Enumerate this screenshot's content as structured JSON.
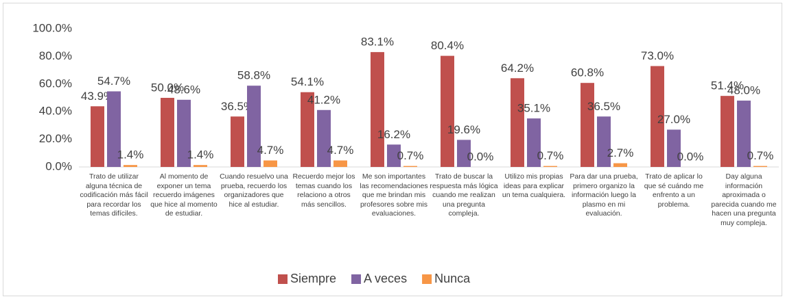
{
  "chart_data": {
    "type": "bar",
    "categories": [
      "Trato de utilizar alguna técnica de codificación más fácil para recordar los temas difíciles.",
      "Al momento de exponer un tema recuerdo imágenes que hice al momento de estudiar.",
      "Cuando resuelvo una prueba, recuerdo los organizadores que hice al estudiar.",
      "Recuerdo mejor los temas cuando los relaciono a otros más sencillos.",
      "Me son importantes las recomendaciones que me brindan mis profesores sobre mis evaluaciones.",
      "Trato de buscar la respuesta más lógica cuando me realizan una pregunta compleja.",
      "Utilizo mis propias ideas para explicar un tema cualquiera.",
      "Para dar una prueba, primero organizo la información luego la plasmo en mi evaluación.",
      "Trato de aplicar lo que sé cuándo me enfrento a un problema.",
      "Day alguna información aproximada o parecida cuando me hacen una pregunta muy compleja."
    ],
    "series": [
      {
        "name": "Siempre",
        "color": "#c0504d",
        "values": [
          43.9,
          50.0,
          36.5,
          54.1,
          83.1,
          80.4,
          64.2,
          60.8,
          73.0,
          51.4
        ],
        "value_labels": [
          "43.9%",
          "50.0%",
          "36.5%",
          "54.1%",
          "83.1%",
          "80.4%",
          "64.2%",
          "60.8%",
          "73.0%",
          "51.4%"
        ]
      },
      {
        "name": "A veces",
        "color": "#8064a2",
        "values": [
          54.7,
          48.6,
          58.8,
          41.2,
          16.2,
          19.6,
          35.1,
          36.5,
          27.0,
          48.0
        ],
        "value_labels": [
          "54.7%",
          "48.6%",
          "58.8%",
          "41.2%",
          "16.2%",
          "19.6%",
          "35.1%",
          "36.5%",
          "27.0%",
          "48.0%"
        ]
      },
      {
        "name": "Nunca",
        "color": "#f79646",
        "values": [
          1.4,
          1.4,
          4.7,
          4.7,
          0.7,
          0.0,
          0.7,
          2.7,
          0.0,
          0.7
        ],
        "value_labels": [
          "1.4%",
          "1.4%",
          "4.7%",
          "4.7%",
          "0.7%",
          "0.0%",
          "0.7%",
          "2.7%",
          "0.0%",
          "0.7%"
        ]
      }
    ],
    "ylim": [
      0,
      100
    ],
    "yticks": [
      {
        "value": 0,
        "label": "0.0%"
      },
      {
        "value": 20,
        "label": "20.0%"
      },
      {
        "value": 40,
        "label": "40.0%"
      },
      {
        "value": 60,
        "label": "60.0%"
      },
      {
        "value": 80,
        "label": "80.0%"
      },
      {
        "value": 100,
        "label": "100.0%"
      }
    ],
    "legend": "bottom"
  }
}
